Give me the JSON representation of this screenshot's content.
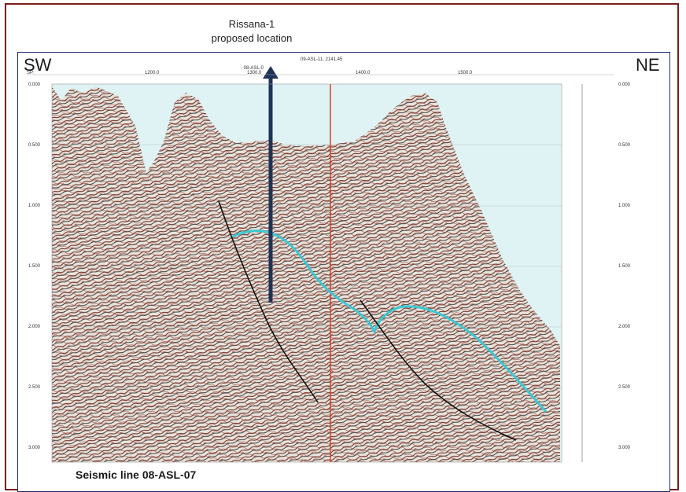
{
  "callout": {
    "line1": "Rissana-1",
    "line2": "proposed location"
  },
  "directions": {
    "left": "SW",
    "right": "NE"
  },
  "header": {
    "sp_label": "SP:",
    "well_tie": "09-ASL-11, 2141.45",
    "line_tie": "- 08-ASL-0"
  },
  "shotpoints": [
    "1200.0",
    "1300.0",
    "1400.0",
    "1500.0"
  ],
  "time_axis": [
    "0.000",
    "0.500",
    "1.000",
    "1.500",
    "2.000",
    "2.500",
    "3.000"
  ],
  "caption": "Seismic line 08-ASL-07",
  "colors": {
    "frame": "#7a1f1f",
    "panel": "#1f2a6e",
    "sky": "#dff3f5",
    "arrow": "#1e3358",
    "tie_line": "#e0301e",
    "horizon": "#3cc8d2",
    "fault": "#111111"
  }
}
